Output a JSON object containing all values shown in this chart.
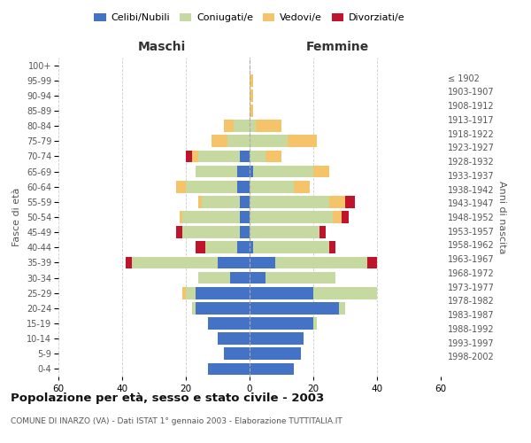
{
  "age_groups": [
    "0-4",
    "5-9",
    "10-14",
    "15-19",
    "20-24",
    "25-29",
    "30-34",
    "35-39",
    "40-44",
    "45-49",
    "50-54",
    "55-59",
    "60-64",
    "65-69",
    "70-74",
    "75-79",
    "80-84",
    "85-89",
    "90-94",
    "95-99",
    "100+"
  ],
  "birth_years": [
    "1998-2002",
    "1993-1997",
    "1988-1992",
    "1983-1987",
    "1978-1982",
    "1973-1977",
    "1968-1972",
    "1963-1967",
    "1958-1962",
    "1953-1957",
    "1948-1952",
    "1943-1947",
    "1938-1942",
    "1933-1937",
    "1928-1932",
    "1923-1927",
    "1918-1922",
    "1913-1917",
    "1908-1912",
    "1903-1907",
    "≤ 1902"
  ],
  "maschi_celibe": [
    13,
    8,
    10,
    13,
    17,
    17,
    6,
    10,
    4,
    3,
    3,
    3,
    4,
    4,
    3,
    0,
    0,
    0,
    0,
    0,
    0
  ],
  "maschi_coniugato": [
    0,
    0,
    0,
    0,
    1,
    3,
    10,
    27,
    10,
    18,
    18,
    12,
    16,
    13,
    13,
    7,
    5,
    0,
    0,
    0,
    0
  ],
  "maschi_vedovo": [
    0,
    0,
    0,
    0,
    0,
    1,
    0,
    0,
    0,
    0,
    1,
    1,
    3,
    0,
    2,
    5,
    3,
    0,
    0,
    0,
    0
  ],
  "maschi_divorziato": [
    0,
    0,
    0,
    0,
    0,
    0,
    0,
    2,
    3,
    2,
    0,
    0,
    0,
    0,
    2,
    0,
    0,
    0,
    0,
    0,
    0
  ],
  "femmine_celibe": [
    14,
    16,
    17,
    20,
    28,
    20,
    5,
    8,
    1,
    0,
    0,
    0,
    0,
    1,
    0,
    0,
    0,
    0,
    0,
    0,
    0
  ],
  "femmine_coniugata": [
    0,
    0,
    0,
    1,
    2,
    20,
    22,
    29,
    24,
    22,
    26,
    25,
    14,
    19,
    5,
    12,
    2,
    0,
    0,
    0,
    0
  ],
  "femmine_vedova": [
    0,
    0,
    0,
    0,
    0,
    0,
    0,
    0,
    0,
    0,
    3,
    5,
    5,
    5,
    5,
    9,
    8,
    1,
    1,
    1,
    0
  ],
  "femmine_divorziata": [
    0,
    0,
    0,
    0,
    0,
    0,
    0,
    3,
    2,
    2,
    2,
    3,
    0,
    0,
    0,
    0,
    0,
    0,
    0,
    0,
    0
  ],
  "colors": {
    "celibe": "#4472C4",
    "coniugato": "#C5D9A0",
    "vedovo": "#F5C36A",
    "divorziato": "#C0132C"
  },
  "title": "Popolazione per età, sesso e stato civile - 2003",
  "subtitle": "COMUNE DI INARZO (VA) - Dati ISTAT 1° gennaio 2003 - Elaborazione TUTTITALIA.IT",
  "ylabel_left": "Fasce di età",
  "ylabel_right": "Anni di nascita",
  "xlabel_maschi": "Maschi",
  "xlabel_femmine": "Femmine",
  "xlim": 60,
  "bg_color": "#FFFFFF",
  "grid_color": "#CCCCCC"
}
